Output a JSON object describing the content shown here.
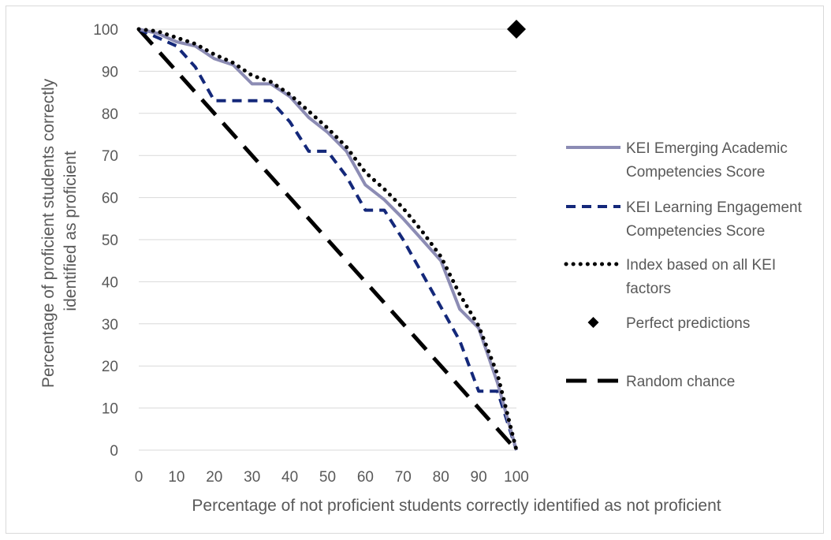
{
  "chart_data": {
    "type": "line",
    "title": "",
    "xlabel": "Percentage of not proficient students correctly identified as not proficient",
    "ylabel_lines": [
      "Percentage of proficient students correctly",
      "identified as proficient"
    ],
    "xlim": [
      0,
      100
    ],
    "ylim": [
      0,
      100
    ],
    "xticks": [
      0,
      10,
      20,
      30,
      40,
      50,
      60,
      70,
      80,
      90,
      100
    ],
    "yticks": [
      0,
      10,
      20,
      30,
      40,
      50,
      60,
      70,
      80,
      90,
      100
    ],
    "grid": "horizontal",
    "legend_position": "right",
    "series": [
      {
        "key": "academic",
        "name_lines": [
          "KEI Emerging Academic",
          "Competencies Score"
        ],
        "color": "#8c8cb4",
        "style": "solid",
        "x": [
          0,
          5,
          10,
          15,
          20,
          25,
          30,
          35,
          40,
          45,
          50,
          55,
          60,
          65,
          70,
          75,
          80,
          85,
          90,
          95,
          100
        ],
        "y": [
          100,
          99,
          97,
          96,
          93,
          91.5,
          87,
          87,
          84,
          79,
          75.5,
          71,
          63,
          59.5,
          55,
          50,
          45,
          33.5,
          29,
          16,
          0
        ]
      },
      {
        "key": "engagement",
        "name_lines": [
          "KEI Learning Engagement",
          "Competencies Score"
        ],
        "color": "#14287a",
        "style": "dash",
        "x": [
          0,
          5,
          10,
          15,
          20,
          25,
          30,
          35,
          40,
          45,
          50,
          55,
          60,
          65,
          70,
          75,
          80,
          85,
          90,
          95,
          100
        ],
        "y": [
          100,
          98,
          96,
          91,
          83,
          83,
          83,
          83,
          78,
          71,
          71,
          65,
          57,
          57,
          50,
          42,
          34,
          26,
          14,
          14,
          0
        ]
      },
      {
        "key": "index",
        "name_lines": [
          "Index based on all KEI",
          "factors"
        ],
        "color": "#000000",
        "style": "dot",
        "x": [
          0,
          5,
          10,
          15,
          20,
          25,
          30,
          35,
          40,
          45,
          50,
          55,
          60,
          65,
          70,
          75,
          80,
          85,
          90,
          95,
          100
        ],
        "y": [
          100,
          99.5,
          98,
          96.5,
          94,
          92,
          89,
          87.5,
          84.5,
          80.5,
          76.5,
          72,
          66,
          62,
          57.5,
          52,
          46,
          37,
          29.5,
          18,
          0
        ]
      },
      {
        "key": "perfect",
        "name_lines": [
          "Perfect predictions"
        ],
        "color": "#000000",
        "style": "diamond",
        "x": [
          100
        ],
        "y": [
          100
        ]
      },
      {
        "key": "random",
        "name_lines": [
          "Random chance"
        ],
        "color": "#000000",
        "style": "longdash",
        "x": [
          0,
          100
        ],
        "y": [
          100,
          0
        ]
      }
    ]
  }
}
